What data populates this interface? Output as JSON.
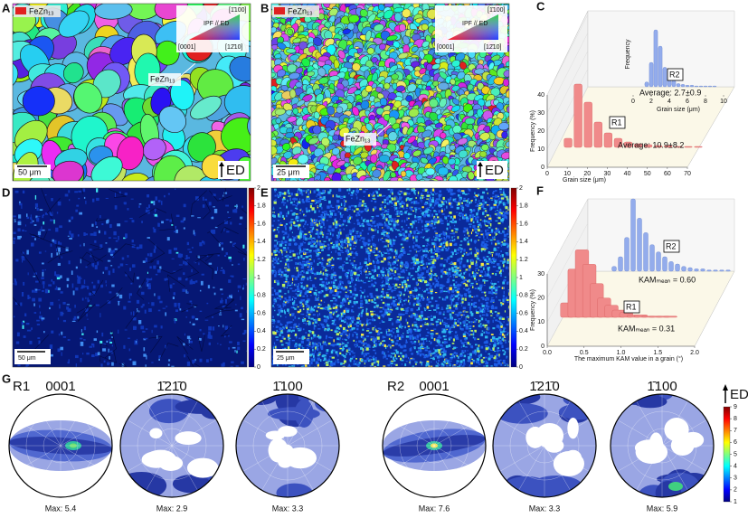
{
  "panel_labels": [
    "A",
    "B",
    "C",
    "D",
    "E",
    "F",
    "G"
  ],
  "A": {
    "legend": "FeZn₁₃",
    "ipf_title": "IPF // ED",
    "ipf_corners": [
      "[1̄100]",
      "[0001]",
      "[12̄10]"
    ],
    "callout": "FeZn₁₃",
    "scale_bar": "50 μm",
    "direction": "ED"
  },
  "B": {
    "legend": "FeZn₁₃",
    "ipf_title": "IPF // ED",
    "ipf_corners": [
      "[1̄100]",
      "[0001]",
      "[12̄10]"
    ],
    "callout": "FeZn₁₃",
    "scale_bar": "25 μm",
    "direction": "ED"
  },
  "C": {
    "front": {
      "name": "R1",
      "xlabel": "Grain size (μm)",
      "ylabel": "Frequency (%)",
      "annotation": "Average: 10.9±8.2",
      "color": "#f08a8a",
      "xlim": [
        0,
        70
      ],
      "xticks": [
        0,
        10,
        20,
        30,
        40,
        50,
        60,
        70
      ],
      "ylim": [
        0,
        40
      ],
      "yticks": [
        0,
        10,
        20,
        30,
        40
      ],
      "x": [
        5,
        10,
        15,
        20,
        25,
        30,
        35,
        40,
        45,
        50,
        55,
        60,
        65,
        70
      ],
      "values": [
        5,
        35,
        25,
        14,
        8,
        5,
        3,
        2,
        1.5,
        1,
        1,
        0.5,
        0.5,
        0.5
      ]
    },
    "back": {
      "name": "R2",
      "xlabel": "Grain size (μm)",
      "ylabel": "Frequency",
      "annotation": "Average: 2.7±0.9",
      "color": "#93acec",
      "xlim": [
        0,
        10
      ],
      "xticks": [
        0,
        2,
        4,
        6,
        8,
        10
      ],
      "ylim": [
        0,
        40
      ],
      "x": [
        1.5,
        2,
        2.5,
        3,
        3.5,
        4,
        4.5,
        5,
        5.5,
        6,
        6.5,
        7,
        7.5,
        8,
        8.5,
        9
      ],
      "values": [
        3,
        15,
        35,
        25,
        12,
        6,
        4,
        2,
        1.5,
        1,
        1,
        0.5,
        0.5,
        0.5,
        0.5,
        0.5
      ]
    }
  },
  "D": {
    "scale_bar": "50 μm",
    "clim": [
      0,
      2
    ],
    "colorbar_ticks": [
      0,
      0.2,
      0.4,
      0.6,
      0.8,
      1,
      1.2,
      1.4,
      1.6,
      1.8,
      2
    ]
  },
  "E": {
    "scale_bar": "25 μm",
    "clim": [
      0,
      2
    ],
    "colorbar_ticks": [
      0,
      0.2,
      0.4,
      0.6,
      0.8,
      1,
      1.2,
      1.4,
      1.6,
      1.8,
      2
    ]
  },
  "F": {
    "front": {
      "name": "R1",
      "xlabel": "The maximum KAM value in a grain (°)",
      "ylabel": "Frequency (%)",
      "annotation": "KAMₘₑₐₙ = 0.31",
      "color": "#f08a8a",
      "xlim": [
        0,
        2
      ],
      "xticks": [
        {
          "value": 0,
          "label": "0.0"
        },
        0.5,
        {
          "value": 1,
          "label": "1.0"
        },
        1.5,
        {
          "value": 2,
          "label": "2.0"
        }
      ],
      "ylim": [
        0,
        30
      ],
      "yticks": [
        0,
        10,
        20,
        30
      ],
      "x": [
        0.1,
        0.2,
        0.3,
        0.4,
        0.5,
        0.6,
        0.7,
        0.8,
        0.9,
        1,
        1.1,
        1.2,
        1.3,
        1.4,
        1.5
      ],
      "values": [
        6,
        20,
        28,
        22,
        14,
        8,
        5,
        3,
        2,
        1,
        1,
        0.5,
        0.5,
        0.5,
        0.5
      ]
    },
    "back": {
      "name": "R2",
      "annotation": "KAMₘₑₐₙ = 0.60",
      "color": "#93acec",
      "xlim": [
        0,
        2
      ],
      "ylim": [
        0,
        30
      ],
      "x": [
        0.1,
        0.2,
        0.3,
        0.4,
        0.5,
        0.6,
        0.7,
        0.8,
        0.9,
        1,
        1.1,
        1.2,
        1.3,
        1.4,
        1.5,
        1.6,
        1.7,
        1.8,
        1.9
      ],
      "values": [
        2,
        6,
        14,
        30,
        22,
        16,
        11,
        8,
        6,
        4,
        3,
        2,
        1.5,
        1,
        1,
        0.5,
        0.5,
        0.5,
        0.5
      ]
    }
  },
  "G": {
    "colorbar_label": "ED",
    "clim": [
      1,
      9
    ],
    "colorbar_ticks": [
      1,
      2,
      3,
      4,
      5,
      6,
      7,
      8,
      9
    ],
    "groups": [
      {
        "label": "R1",
        "poles": [
          {
            "title": "0001",
            "max": "Max: 5.4"
          },
          {
            "title": "1̄21̄0",
            "max": "Max: 2.9"
          },
          {
            "title": "1̄100",
            "max": "Max: 3.3"
          }
        ]
      },
      {
        "label": "R2",
        "poles": [
          {
            "title": "0001",
            "max": "Max: 7.6"
          },
          {
            "title": "1̄21̄0",
            "max": "Max: 3.3"
          },
          {
            "title": "1̄100",
            "max": "Max: 5.9"
          }
        ]
      }
    ]
  }
}
